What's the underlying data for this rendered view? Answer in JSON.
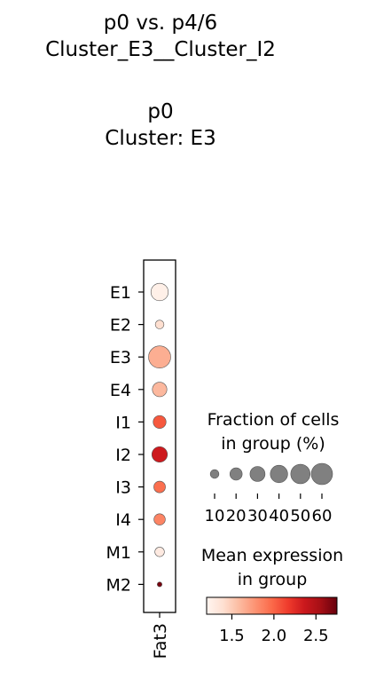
{
  "title_lines": [
    "p0 vs. p4/6",
    "Cluster_E3__Cluster_I2",
    "",
    "p0",
    "Cluster: E3"
  ],
  "chart_data": {
    "type": "dotplot",
    "gene": "Fat3",
    "groups": [
      "E1",
      "E2",
      "E3",
      "E4",
      "I1",
      "I2",
      "I3",
      "I4",
      "M1",
      "M2"
    ],
    "fraction_percent": [
      40,
      10,
      65,
      28,
      22,
      32,
      18,
      17,
      12,
      3
    ],
    "mean_expression": [
      1.25,
      1.4,
      1.65,
      1.6,
      2.05,
      2.35,
      1.95,
      1.85,
      1.3,
      2.7
    ],
    "size_legend": {
      "title_lines": [
        "Fraction of cells",
        "in group (%)"
      ],
      "values": [
        10,
        20,
        30,
        40,
        50,
        60
      ],
      "labels": [
        "10",
        "20",
        "30",
        "40",
        "50",
        "60"
      ]
    },
    "color_legend": {
      "title_lines": [
        "Mean expression",
        "in group"
      ],
      "range": [
        1.2,
        2.75
      ],
      "ticks": [
        1.5,
        2.0,
        2.5
      ],
      "tick_labels": [
        "1.5",
        "2.0",
        "2.5"
      ],
      "colormap": "Reds"
    }
  }
}
